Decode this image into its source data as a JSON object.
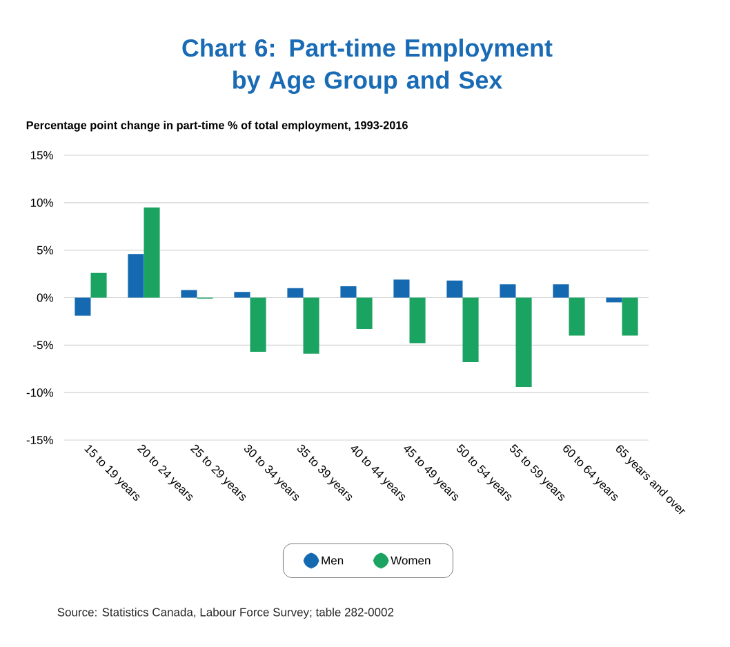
{
  "chart_data": {
    "type": "bar",
    "title": "Chart 6: Part-time Employment by Age Group and Sex",
    "subtitle": "Percentage point change in part-time % of total employment, 1993-2016",
    "categories": [
      "15 to 19 years",
      "20 to 24 years",
      "25 to 29 years",
      "30 to 34 years",
      "35 to 39 years",
      "40 to 44 years",
      "45 to 49 years",
      "50 to 54 years",
      "55 to 59 years",
      "60 to 64 years",
      "65 years and over"
    ],
    "series": [
      {
        "name": "Men",
        "color": "#1569b1",
        "values": [
          -1.9,
          4.6,
          0.8,
          0.6,
          1.0,
          1.2,
          1.9,
          1.8,
          1.4,
          1.4,
          -0.5
        ]
      },
      {
        "name": "Women",
        "color": "#1ba361",
        "values": [
          2.6,
          9.5,
          -0.1,
          -5.7,
          -5.9,
          -3.3,
          -4.8,
          -6.8,
          -9.4,
          -4.0,
          -4.0
        ]
      }
    ],
    "ylim": [
      -15,
      15
    ],
    "yticks": [
      {
        "value": -15,
        "label": "-15%"
      },
      {
        "value": -10,
        "label": "-10%"
      },
      {
        "value": -5,
        "label": "-5%"
      },
      {
        "value": 0,
        "label": "0%"
      },
      {
        "value": 5,
        "label": "5%"
      },
      {
        "value": 10,
        "label": "10%"
      },
      {
        "value": 15,
        "label": "15%"
      }
    ],
    "grid": "y",
    "legend": "bottom",
    "annotations": [
      "Source: Statistics Canada, Labour Force Survey; table 282-0002"
    ]
  }
}
